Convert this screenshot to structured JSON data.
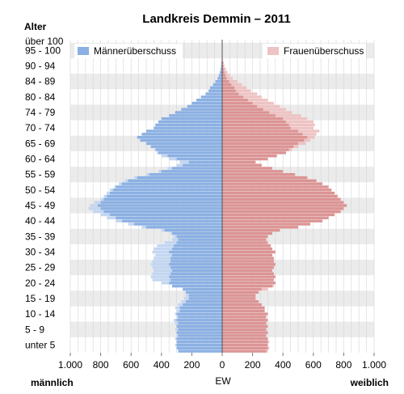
{
  "chart_data": {
    "type": "bar",
    "subtype": "population-pyramid",
    "title": "Landkreis Demmin – 2011",
    "y_axis_title": "Alter",
    "x_center_label": "EW",
    "left_label": "männlich",
    "right_label": "weiblich",
    "legend": {
      "male_surplus": "Männerüberschuss",
      "female_surplus": "Frauenüberschuss"
    },
    "colors": {
      "male": "#8bb0e3",
      "female": "#dc9494",
      "male_surplus": "#c3d6f1",
      "female_surplus": "#eec3c3",
      "band": "#ebebeb"
    },
    "xlim": [
      -1000,
      1000
    ],
    "x_ticks": [
      {
        "value": -1000,
        "label": "1.000"
      },
      {
        "value": -800,
        "label": "800"
      },
      {
        "value": -600,
        "label": "600"
      },
      {
        "value": -400,
        "label": "400"
      },
      {
        "value": -200,
        "label": "200"
      },
      {
        "value": 0,
        "label": "0"
      },
      {
        "value": 200,
        "label": "200"
      },
      {
        "value": 400,
        "label": "400"
      },
      {
        "value": 600,
        "label": "600"
      },
      {
        "value": 800,
        "label": "800"
      },
      {
        "value": 1000,
        "label": "1.000"
      }
    ],
    "age_labels": [
      "unter 5",
      "5 - 9",
      "10 - 14",
      "15 - 19",
      "20 - 24",
      "25 - 29",
      "30 - 34",
      "35 - 39",
      "40 - 44",
      "45 - 49",
      "50 - 54",
      "55 - 59",
      "60 - 64",
      "65 - 69",
      "70 - 74",
      "74 - 79",
      "80 - 84",
      "84 - 89",
      "90 - 94",
      "95 - 100",
      "über 100"
    ],
    "ages": [
      0,
      1,
      2,
      3,
      4,
      5,
      6,
      7,
      8,
      9,
      10,
      11,
      12,
      13,
      14,
      15,
      16,
      17,
      18,
      19,
      20,
      21,
      22,
      23,
      24,
      25,
      26,
      27,
      28,
      29,
      30,
      31,
      32,
      33,
      34,
      35,
      36,
      37,
      38,
      39,
      40,
      41,
      42,
      43,
      44,
      45,
      46,
      47,
      48,
      49,
      50,
      51,
      52,
      53,
      54,
      55,
      56,
      57,
      58,
      59,
      60,
      61,
      62,
      63,
      64,
      65,
      66,
      67,
      68,
      69,
      70,
      71,
      72,
      73,
      74,
      75,
      76,
      77,
      78,
      79,
      80,
      81,
      82,
      83,
      84,
      85,
      86,
      87,
      88,
      89,
      90,
      91,
      92,
      93,
      94,
      95,
      96,
      97,
      98,
      99,
      100
    ],
    "male": [
      290,
      300,
      310,
      300,
      310,
      300,
      300,
      310,
      300,
      310,
      320,
      300,
      310,
      300,
      310,
      290,
      270,
      250,
      240,
      240,
      260,
      330,
      400,
      460,
      470,
      460,
      450,
      460,
      470,
      460,
      450,
      440,
      460,
      450,
      430,
      380,
      330,
      320,
      340,
      400,
      530,
      620,
      700,
      760,
      800,
      850,
      880,
      870,
      840,
      800,
      780,
      760,
      740,
      710,
      680,
      640,
      580,
      500,
      420,
      360,
      300,
      280,
      350,
      400,
      430,
      440,
      470,
      500,
      540,
      560,
      530,
      500,
      450,
      440,
      420,
      400,
      350,
      310,
      270,
      230,
      200,
      170,
      140,
      110,
      90,
      80,
      60,
      45,
      30,
      22,
      15,
      10,
      7,
      5,
      3,
      2,
      1,
      1,
      0,
      0,
      0
    ],
    "female": [
      300,
      310,
      300,
      310,
      300,
      290,
      300,
      290,
      300,
      290,
      300,
      290,
      300,
      280,
      280,
      260,
      240,
      220,
      220,
      240,
      300,
      340,
      350,
      340,
      350,
      340,
      330,
      340,
      350,
      340,
      340,
      330,
      350,
      330,
      320,
      300,
      290,
      300,
      330,
      380,
      500,
      580,
      660,
      700,
      740,
      780,
      800,
      820,
      800,
      780,
      760,
      740,
      720,
      700,
      660,
      620,
      560,
      480,
      400,
      330,
      260,
      220,
      300,
      360,
      420,
      460,
      500,
      550,
      580,
      610,
      620,
      640,
      600,
      610,
      600,
      560,
      520,
      460,
      420,
      380,
      340,
      300,
      260,
      230,
      190,
      160,
      130,
      100,
      70,
      50,
      35,
      25,
      15,
      10,
      5,
      3,
      2,
      1,
      1,
      0,
      0
    ]
  }
}
